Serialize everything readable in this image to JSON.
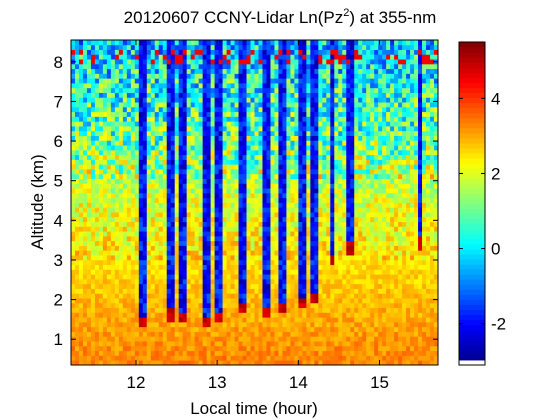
{
  "chart_data": {
    "type": "heatmap",
    "title": "20120607 CCNY-Lidar Ln(Pz",
    "title_sup": "2",
    "title_suffix": ") at 355-nm",
    "xlabel": "Local time (hour)",
    "ylabel": "Altitude (km)",
    "xlim": [
      11.2,
      15.72
    ],
    "ylim": [
      0.35,
      8.55
    ],
    "xticks": [
      "12",
      "13",
      "14",
      "15"
    ],
    "yticks": [
      "1",
      "2",
      "3",
      "4",
      "5",
      "6",
      "7",
      "8"
    ],
    "colorbar": {
      "range": [
        -3.1,
        5.5
      ],
      "ticks": [
        "-2",
        "0",
        "2",
        "4"
      ],
      "colormap": "jet"
    },
    "background_profile": [
      {
        "altitude_km": 0.5,
        "value": 3.3
      },
      {
        "altitude_km": 1.5,
        "value": 3.0
      },
      {
        "altitude_km": 3.0,
        "value": 2.5
      },
      {
        "altitude_km": 4.5,
        "value": 2.0
      },
      {
        "altitude_km": 6.0,
        "value": 1.0
      },
      {
        "altitude_km": 7.5,
        "value": 0.3
      },
      {
        "altitude_km": 8.5,
        "value": -0.2
      }
    ],
    "cloud_columns": [
      {
        "time_h": 12.08,
        "base_km": 1.4
      },
      {
        "time_h": 12.43,
        "base_km": 1.6
      },
      {
        "time_h": 12.57,
        "base_km": 1.5
      },
      {
        "time_h": 12.88,
        "base_km": 1.4
      },
      {
        "time_h": 13.0,
        "base_km": 1.5
      },
      {
        "time_h": 13.33,
        "base_km": 1.8
      },
      {
        "time_h": 13.6,
        "base_km": 1.7
      },
      {
        "time_h": 13.82,
        "base_km": 1.8
      },
      {
        "time_h": 14.05,
        "base_km": 1.9
      },
      {
        "time_h": 14.18,
        "base_km": 2.0
      },
      {
        "time_h": 14.42,
        "base_km": 3.0
      },
      {
        "time_h": 14.65,
        "base_km": 3.3
      },
      {
        "time_h": 15.5,
        "base_km": 3.4
      }
    ]
  }
}
